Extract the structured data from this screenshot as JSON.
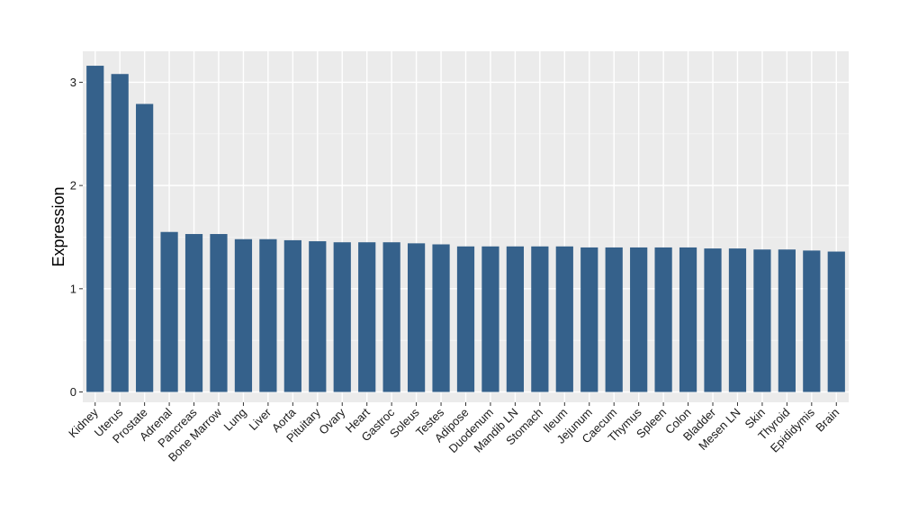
{
  "chart_data": {
    "type": "bar",
    "title": "",
    "xlabel": "",
    "ylabel": "Expression",
    "ylim": [
      -0.1,
      3.3
    ],
    "yticks": [
      0,
      1,
      2,
      3
    ],
    "grid": true,
    "legend": "none",
    "colors": {
      "bar": "#35618b",
      "panel": "#ebebeb",
      "grid_major": "#ffffff",
      "grid_minor": "#f5f5f5",
      "tick": "#333333"
    },
    "categories": [
      "Kidney",
      "Uterus",
      "Prostate",
      "Adrenal",
      "Pancreas",
      "Bone Marrow",
      "Lung",
      "Liver",
      "Aorta",
      "Pituitary",
      "Ovary",
      "Heart",
      "Gastroc",
      "Soleus",
      "Testes",
      "Adipose",
      "Duodenum",
      "Mandib LN",
      "Stomach",
      "Ileum",
      "Jejunum",
      "Caecum",
      "Thymus",
      "Spleen",
      "Colon",
      "Bladder",
      "Mesen LN",
      "Skin",
      "Thyroid",
      "Epididymis",
      "Brain"
    ],
    "values": [
      3.16,
      3.08,
      2.79,
      1.55,
      1.53,
      1.53,
      1.48,
      1.48,
      1.47,
      1.46,
      1.45,
      1.45,
      1.45,
      1.44,
      1.43,
      1.41,
      1.41,
      1.41,
      1.41,
      1.41,
      1.4,
      1.4,
      1.4,
      1.4,
      1.4,
      1.39,
      1.39,
      1.38,
      1.38,
      1.37,
      1.36
    ]
  }
}
